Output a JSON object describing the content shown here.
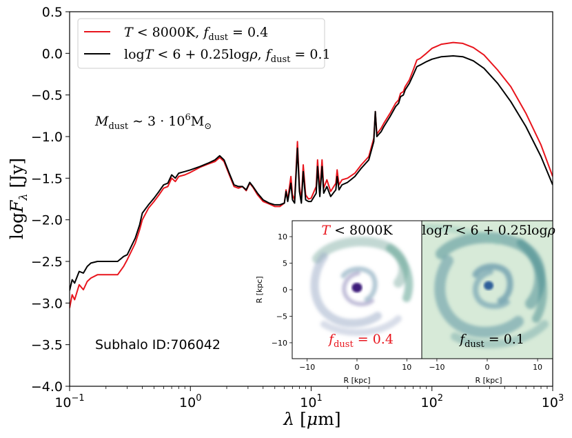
{
  "chart_data": {
    "type": "line",
    "xscale": "log",
    "xlim": [
      0.1,
      1000
    ],
    "ylim": [
      -4.0,
      0.5
    ],
    "xlabel": "λ [μm]",
    "ylabel": "logF_λ [Jy]",
    "x_ticks": [
      0.1,
      1,
      10,
      100,
      1000
    ],
    "x_tick_labels": [
      {
        "base": "10",
        "exp": "−1"
      },
      {
        "base": "10",
        "exp": "0"
      },
      {
        "base": "10",
        "exp": "1"
      },
      {
        "base": "10",
        "exp": "2"
      },
      {
        "base": "10",
        "exp": "3"
      }
    ],
    "y_ticks": [
      -4.0,
      -3.5,
      -3.0,
      -2.5,
      -2.0,
      -1.5,
      -1.0,
      -0.5,
      0.0,
      0.5
    ],
    "y_tick_labels": [
      "−4.0",
      "−3.5",
      "−3.0",
      "−2.5",
      "−2.0",
      "−1.5",
      "−1.0",
      "−0.5",
      "0.0",
      "0.5"
    ],
    "grid": false,
    "legend_position": "top-left",
    "series": [
      {
        "name": "T < 8000K,  f_dust = 0.4",
        "color": "#e8141c",
        "points": [
          [
            0.1,
            -3.06
          ],
          [
            0.105,
            -2.9
          ],
          [
            0.11,
            -2.96
          ],
          [
            0.12,
            -2.78
          ],
          [
            0.13,
            -2.84
          ],
          [
            0.14,
            -2.74
          ],
          [
            0.15,
            -2.7
          ],
          [
            0.17,
            -2.66
          ],
          [
            0.2,
            -2.66
          ],
          [
            0.25,
            -2.66
          ],
          [
            0.28,
            -2.56
          ],
          [
            0.3,
            -2.48
          ],
          [
            0.35,
            -2.28
          ],
          [
            0.38,
            -2.12
          ],
          [
            0.4,
            -2.0
          ],
          [
            0.45,
            -1.86
          ],
          [
            0.5,
            -1.78
          ],
          [
            0.55,
            -1.7
          ],
          [
            0.6,
            -1.62
          ],
          [
            0.65,
            -1.6
          ],
          [
            0.7,
            -1.5
          ],
          [
            0.75,
            -1.54
          ],
          [
            0.8,
            -1.48
          ],
          [
            0.9,
            -1.46
          ],
          [
            1.0,
            -1.43
          ],
          [
            1.2,
            -1.37
          ],
          [
            1.4,
            -1.33
          ],
          [
            1.6,
            -1.3
          ],
          [
            1.75,
            -1.25
          ],
          [
            1.9,
            -1.3
          ],
          [
            2.1,
            -1.46
          ],
          [
            2.3,
            -1.6
          ],
          [
            2.5,
            -1.62
          ],
          [
            2.7,
            -1.6
          ],
          [
            2.9,
            -1.65
          ],
          [
            3.1,
            -1.56
          ],
          [
            3.3,
            -1.61
          ],
          [
            3.6,
            -1.7
          ],
          [
            4.0,
            -1.78
          ],
          [
            4.5,
            -1.81
          ],
          [
            5.0,
            -1.84
          ],
          [
            5.5,
            -1.84
          ],
          [
            6.0,
            -1.8
          ],
          [
            6.2,
            -1.64
          ],
          [
            6.4,
            -1.76
          ],
          [
            6.8,
            -1.48
          ],
          [
            7.0,
            -1.7
          ],
          [
            7.3,
            -1.76
          ],
          [
            7.7,
            -1.06
          ],
          [
            8.0,
            -1.6
          ],
          [
            8.3,
            -1.76
          ],
          [
            8.6,
            -1.34
          ],
          [
            9.0,
            -1.7
          ],
          [
            9.5,
            -1.75
          ],
          [
            10.0,
            -1.74
          ],
          [
            11.0,
            -1.6
          ],
          [
            11.3,
            -1.28
          ],
          [
            11.8,
            -1.66
          ],
          [
            12.3,
            -1.28
          ],
          [
            12.7,
            -1.62
          ],
          [
            13.5,
            -1.52
          ],
          [
            14.5,
            -1.66
          ],
          [
            16.0,
            -1.56
          ],
          [
            16.4,
            -1.4
          ],
          [
            17.0,
            -1.58
          ],
          [
            18.0,
            -1.52
          ],
          [
            20.0,
            -1.5
          ],
          [
            23.0,
            -1.44
          ],
          [
            26.0,
            -1.34
          ],
          [
            30.0,
            -1.24
          ],
          [
            33.0,
            -1.02
          ],
          [
            34.0,
            -0.7
          ],
          [
            35.0,
            -0.97
          ],
          [
            38.0,
            -0.9
          ],
          [
            40.0,
            -0.84
          ],
          [
            45.0,
            -0.72
          ],
          [
            50.0,
            -0.6
          ],
          [
            53.0,
            -0.56
          ],
          [
            55.0,
            -0.48
          ],
          [
            58.0,
            -0.46
          ],
          [
            60.0,
            -0.4
          ],
          [
            65.0,
            -0.32
          ],
          [
            70.0,
            -0.2
          ],
          [
            75.0,
            -0.08
          ],
          [
            80.0,
            -0.06
          ],
          [
            90.0,
            0.0
          ],
          [
            100.0,
            0.06
          ],
          [
            120.0,
            0.11
          ],
          [
            150.0,
            0.13
          ],
          [
            180.0,
            0.12
          ],
          [
            220.0,
            0.07
          ],
          [
            270.0,
            -0.02
          ],
          [
            350.0,
            -0.2
          ],
          [
            450.0,
            -0.4
          ],
          [
            600.0,
            -0.72
          ],
          [
            800.0,
            -1.1
          ],
          [
            1000.0,
            -1.48
          ]
        ]
      },
      {
        "name": "logT < 6 + 0.25logρ,  f_dust = 0.1",
        "color": "#000000",
        "points": [
          [
            0.1,
            -2.85
          ],
          [
            0.105,
            -2.72
          ],
          [
            0.11,
            -2.76
          ],
          [
            0.12,
            -2.62
          ],
          [
            0.13,
            -2.64
          ],
          [
            0.14,
            -2.56
          ],
          [
            0.15,
            -2.52
          ],
          [
            0.17,
            -2.5
          ],
          [
            0.2,
            -2.5
          ],
          [
            0.25,
            -2.5
          ],
          [
            0.28,
            -2.44
          ],
          [
            0.3,
            -2.42
          ],
          [
            0.35,
            -2.22
          ],
          [
            0.38,
            -2.06
          ],
          [
            0.4,
            -1.92
          ],
          [
            0.45,
            -1.82
          ],
          [
            0.5,
            -1.74
          ],
          [
            0.55,
            -1.66
          ],
          [
            0.6,
            -1.58
          ],
          [
            0.65,
            -1.56
          ],
          [
            0.7,
            -1.46
          ],
          [
            0.75,
            -1.5
          ],
          [
            0.8,
            -1.44
          ],
          [
            0.9,
            -1.42
          ],
          [
            1.0,
            -1.4
          ],
          [
            1.2,
            -1.36
          ],
          [
            1.4,
            -1.32
          ],
          [
            1.6,
            -1.28
          ],
          [
            1.75,
            -1.23
          ],
          [
            1.9,
            -1.28
          ],
          [
            2.1,
            -1.44
          ],
          [
            2.3,
            -1.58
          ],
          [
            2.5,
            -1.6
          ],
          [
            2.7,
            -1.6
          ],
          [
            2.9,
            -1.64
          ],
          [
            3.1,
            -1.55
          ],
          [
            3.3,
            -1.6
          ],
          [
            3.6,
            -1.68
          ],
          [
            4.0,
            -1.76
          ],
          [
            4.5,
            -1.8
          ],
          [
            5.0,
            -1.82
          ],
          [
            5.5,
            -1.82
          ],
          [
            6.0,
            -1.8
          ],
          [
            6.2,
            -1.66
          ],
          [
            6.4,
            -1.78
          ],
          [
            6.8,
            -1.56
          ],
          [
            7.0,
            -1.76
          ],
          [
            7.3,
            -1.8
          ],
          [
            7.7,
            -1.14
          ],
          [
            8.0,
            -1.66
          ],
          [
            8.3,
            -1.8
          ],
          [
            8.6,
            -1.42
          ],
          [
            9.0,
            -1.76
          ],
          [
            9.5,
            -1.78
          ],
          [
            10.0,
            -1.78
          ],
          [
            11.0,
            -1.68
          ],
          [
            11.3,
            -1.36
          ],
          [
            11.8,
            -1.72
          ],
          [
            12.3,
            -1.36
          ],
          [
            12.7,
            -1.68
          ],
          [
            13.5,
            -1.6
          ],
          [
            14.5,
            -1.72
          ],
          [
            16.0,
            -1.64
          ],
          [
            16.4,
            -1.48
          ],
          [
            17.0,
            -1.64
          ],
          [
            18.0,
            -1.58
          ],
          [
            20.0,
            -1.55
          ],
          [
            23.0,
            -1.48
          ],
          [
            26.0,
            -1.38
          ],
          [
            30.0,
            -1.28
          ],
          [
            33.0,
            -1.06
          ],
          [
            34.0,
            -0.7
          ],
          [
            35.0,
            -1.0
          ],
          [
            38.0,
            -0.94
          ],
          [
            40.0,
            -0.88
          ],
          [
            45.0,
            -0.76
          ],
          [
            50.0,
            -0.64
          ],
          [
            53.0,
            -0.6
          ],
          [
            55.0,
            -0.52
          ],
          [
            58.0,
            -0.5
          ],
          [
            60.0,
            -0.44
          ],
          [
            65.0,
            -0.36
          ],
          [
            70.0,
            -0.26
          ],
          [
            75.0,
            -0.16
          ],
          [
            80.0,
            -0.14
          ],
          [
            90.0,
            -0.1
          ],
          [
            100.0,
            -0.07
          ],
          [
            120.0,
            -0.04
          ],
          [
            150.0,
            -0.03
          ],
          [
            180.0,
            -0.04
          ],
          [
            220.0,
            -0.09
          ],
          [
            270.0,
            -0.18
          ],
          [
            350.0,
            -0.36
          ],
          [
            450.0,
            -0.58
          ],
          [
            600.0,
            -0.88
          ],
          [
            800.0,
            -1.24
          ],
          [
            1000.0,
            -1.58
          ]
        ]
      }
    ],
    "annotations": {
      "dust_mass": "M_dust ∼ 3·10^6 M_⊙",
      "subhalo": "Subhalo ID:706042"
    },
    "insets": [
      {
        "title": "T < 8000K",
        "title_color": "#e8141c",
        "label": "f_dust = 0.4",
        "label_color": "#e8141c",
        "xlabel": "R [kpc]",
        "ylabel": "R [kpc]",
        "xlim": [
          -13,
          13
        ],
        "ylim": [
          -13,
          13
        ],
        "x_ticks": [
          -10,
          0,
          10
        ],
        "x_tick_labels": [
          "−10",
          "0",
          "10"
        ],
        "y_ticks": [
          -10,
          -5,
          0,
          5,
          10
        ],
        "y_tick_labels": [
          "−10",
          "−5",
          "0",
          "5",
          "10"
        ],
        "background": "#ffffff",
        "arm_color": "#6fa8a8",
        "core_color": "#3d1f7a"
      },
      {
        "title": "logT < 6 + 0.25logρ",
        "title_color": "#000000",
        "label": "f_dust = 0.1",
        "label_color": "#000000",
        "xlabel": "R [kpc]",
        "xlim": [
          -13,
          13
        ],
        "x_ticks": [
          -10,
          0,
          10
        ],
        "x_tick_labels": [
          "−10",
          "0",
          "10"
        ],
        "background": "#d7ead8",
        "arm_color": "#5d9aa0",
        "core_color": "#2f5f9a"
      }
    ]
  }
}
